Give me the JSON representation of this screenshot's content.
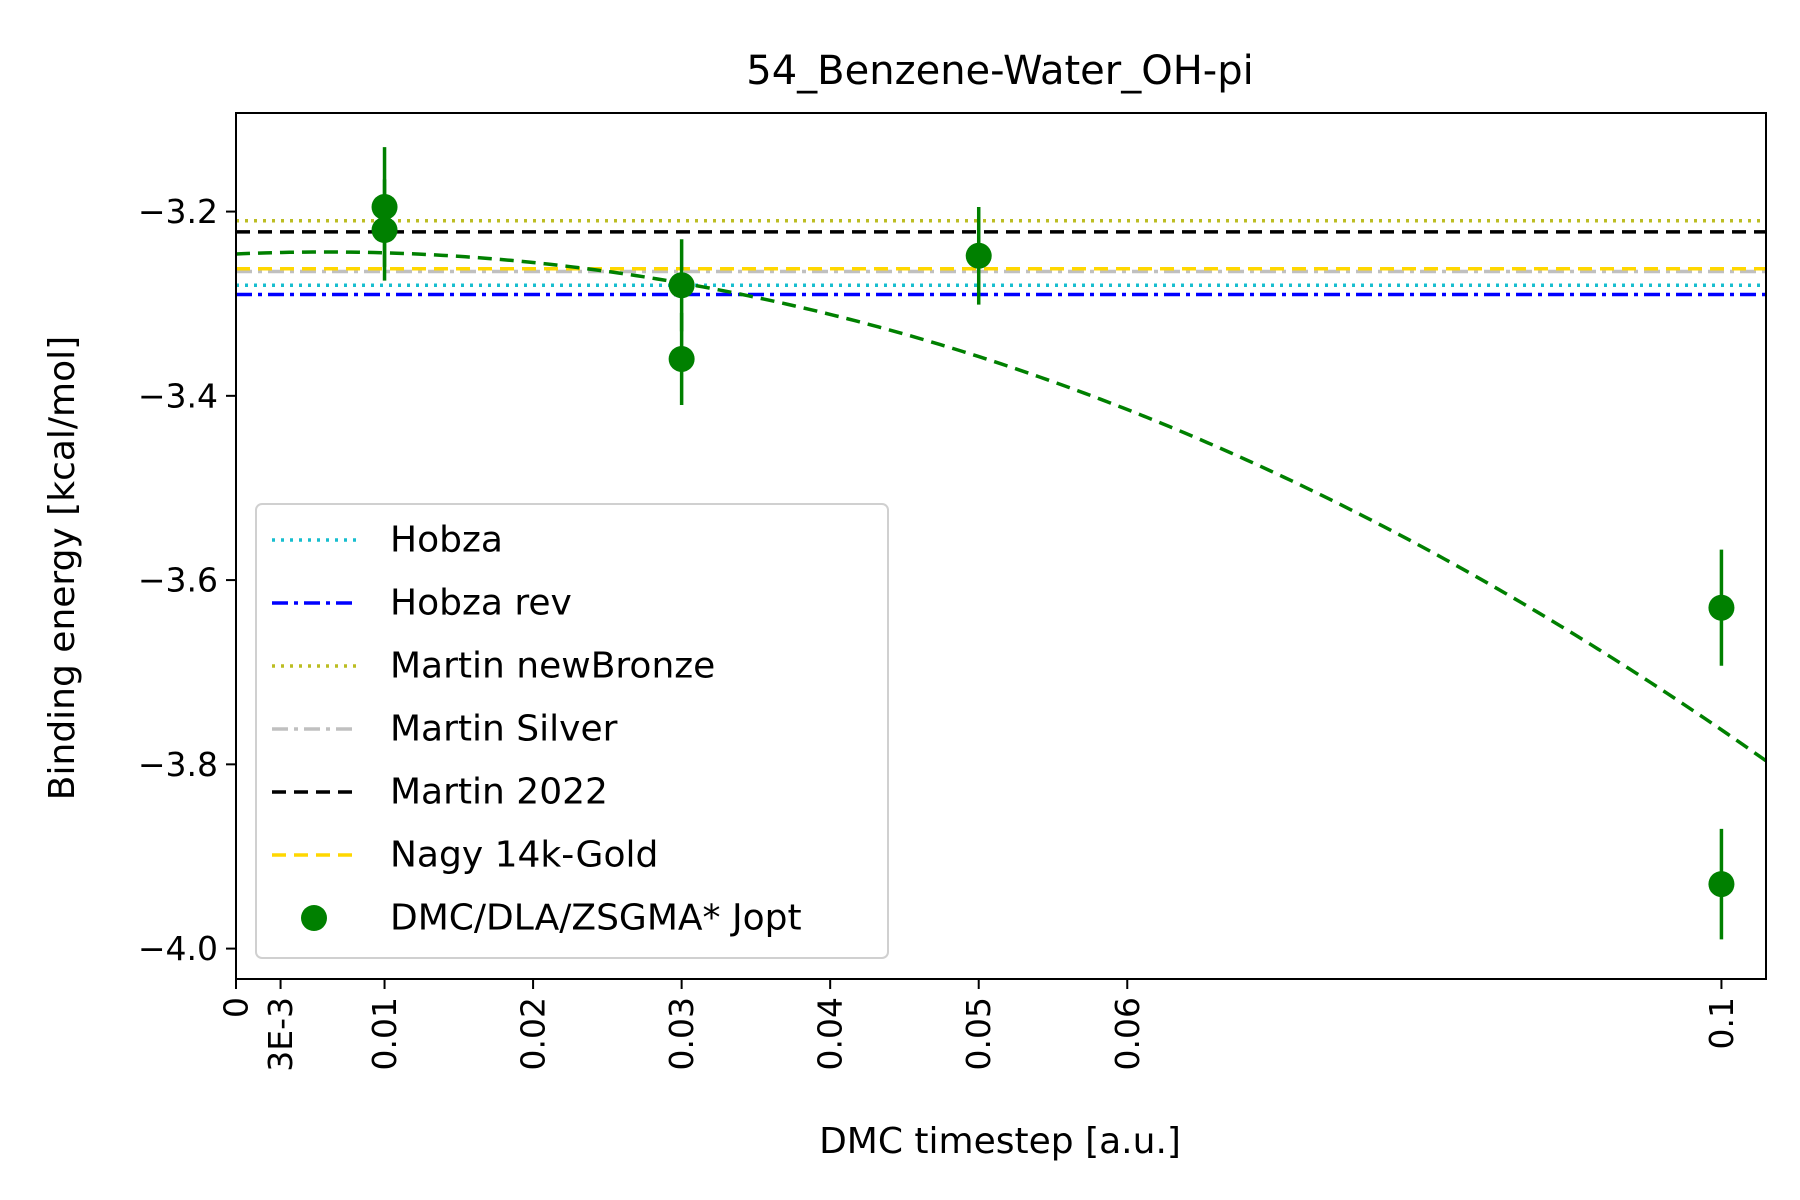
{
  "chart_data": {
    "type": "scatter",
    "title": "54_Benzene-Water_OH-pi",
    "xlabel": "DMC timestep [a.u.]",
    "ylabel": "Binding energy [kcal/mol]",
    "xlim": [
      0,
      0.103
    ],
    "ylim": [
      -4.033,
      -3.093
    ],
    "x_ticks": [
      {
        "value": 0,
        "label": "0"
      },
      {
        "value": 0.003,
        "label": "3E-3"
      },
      {
        "value": 0.01,
        "label": "0.01"
      },
      {
        "value": 0.02,
        "label": "0.02"
      },
      {
        "value": 0.03,
        "label": "0.03"
      },
      {
        "value": 0.04,
        "label": "0.04"
      },
      {
        "value": 0.05,
        "label": "0.05"
      },
      {
        "value": 0.06,
        "label": "0.06"
      },
      {
        "value": 0.1,
        "label": "0.1"
      }
    ],
    "y_ticks": [
      {
        "value": -3.2,
        "label": "−3.2"
      },
      {
        "value": -3.4,
        "label": "−3.4"
      },
      {
        "value": -3.6,
        "label": "−3.6"
      },
      {
        "value": -3.8,
        "label": "−3.8"
      },
      {
        "value": -4.0,
        "label": "−4.0"
      }
    ],
    "grid": false,
    "legend_position": "lower-left",
    "reference_lines": [
      {
        "name": "Hobza",
        "y": -3.28,
        "color": "#17becf",
        "style": "dotted"
      },
      {
        "name": "Hobza rev",
        "y": -3.29,
        "color": "#0000ff",
        "style": "dashdot"
      },
      {
        "name": "Martin newBronze",
        "y": -3.21,
        "color": "#bcbd22",
        "style": "dotted"
      },
      {
        "name": "Martin Silver",
        "y": -3.265,
        "color": "#c0c0c0",
        "style": "dashdot"
      },
      {
        "name": "Martin 2022",
        "y": -3.222,
        "color": "#000000",
        "style": "dashed"
      },
      {
        "name": "Nagy 14k-Gold",
        "y": -3.262,
        "color": "#ffd700",
        "style": "dashed"
      }
    ],
    "dmc_series": {
      "name": "DMC/DLA/ZSGMA* Jopt",
      "color": "#008000",
      "points": [
        {
          "x": 0.01,
          "y": -3.195,
          "err": 0.065
        },
        {
          "x": 0.01,
          "y": -3.22,
          "err": 0.055
        },
        {
          "x": 0.03,
          "y": -3.28,
          "err": 0.05
        },
        {
          "x": 0.03,
          "y": -3.36,
          "err": 0.05
        },
        {
          "x": 0.05,
          "y": -3.248,
          "err": 0.053
        },
        {
          "x": 0.1,
          "y": -3.63,
          "err": 0.063
        },
        {
          "x": 0.1,
          "y": -3.93,
          "err": 0.06
        }
      ]
    },
    "fit_curve": {
      "color": "#008000",
      "style": "dashed",
      "coefficients": [
        -3.246,
        0.71,
        -58.75
      ]
    }
  }
}
